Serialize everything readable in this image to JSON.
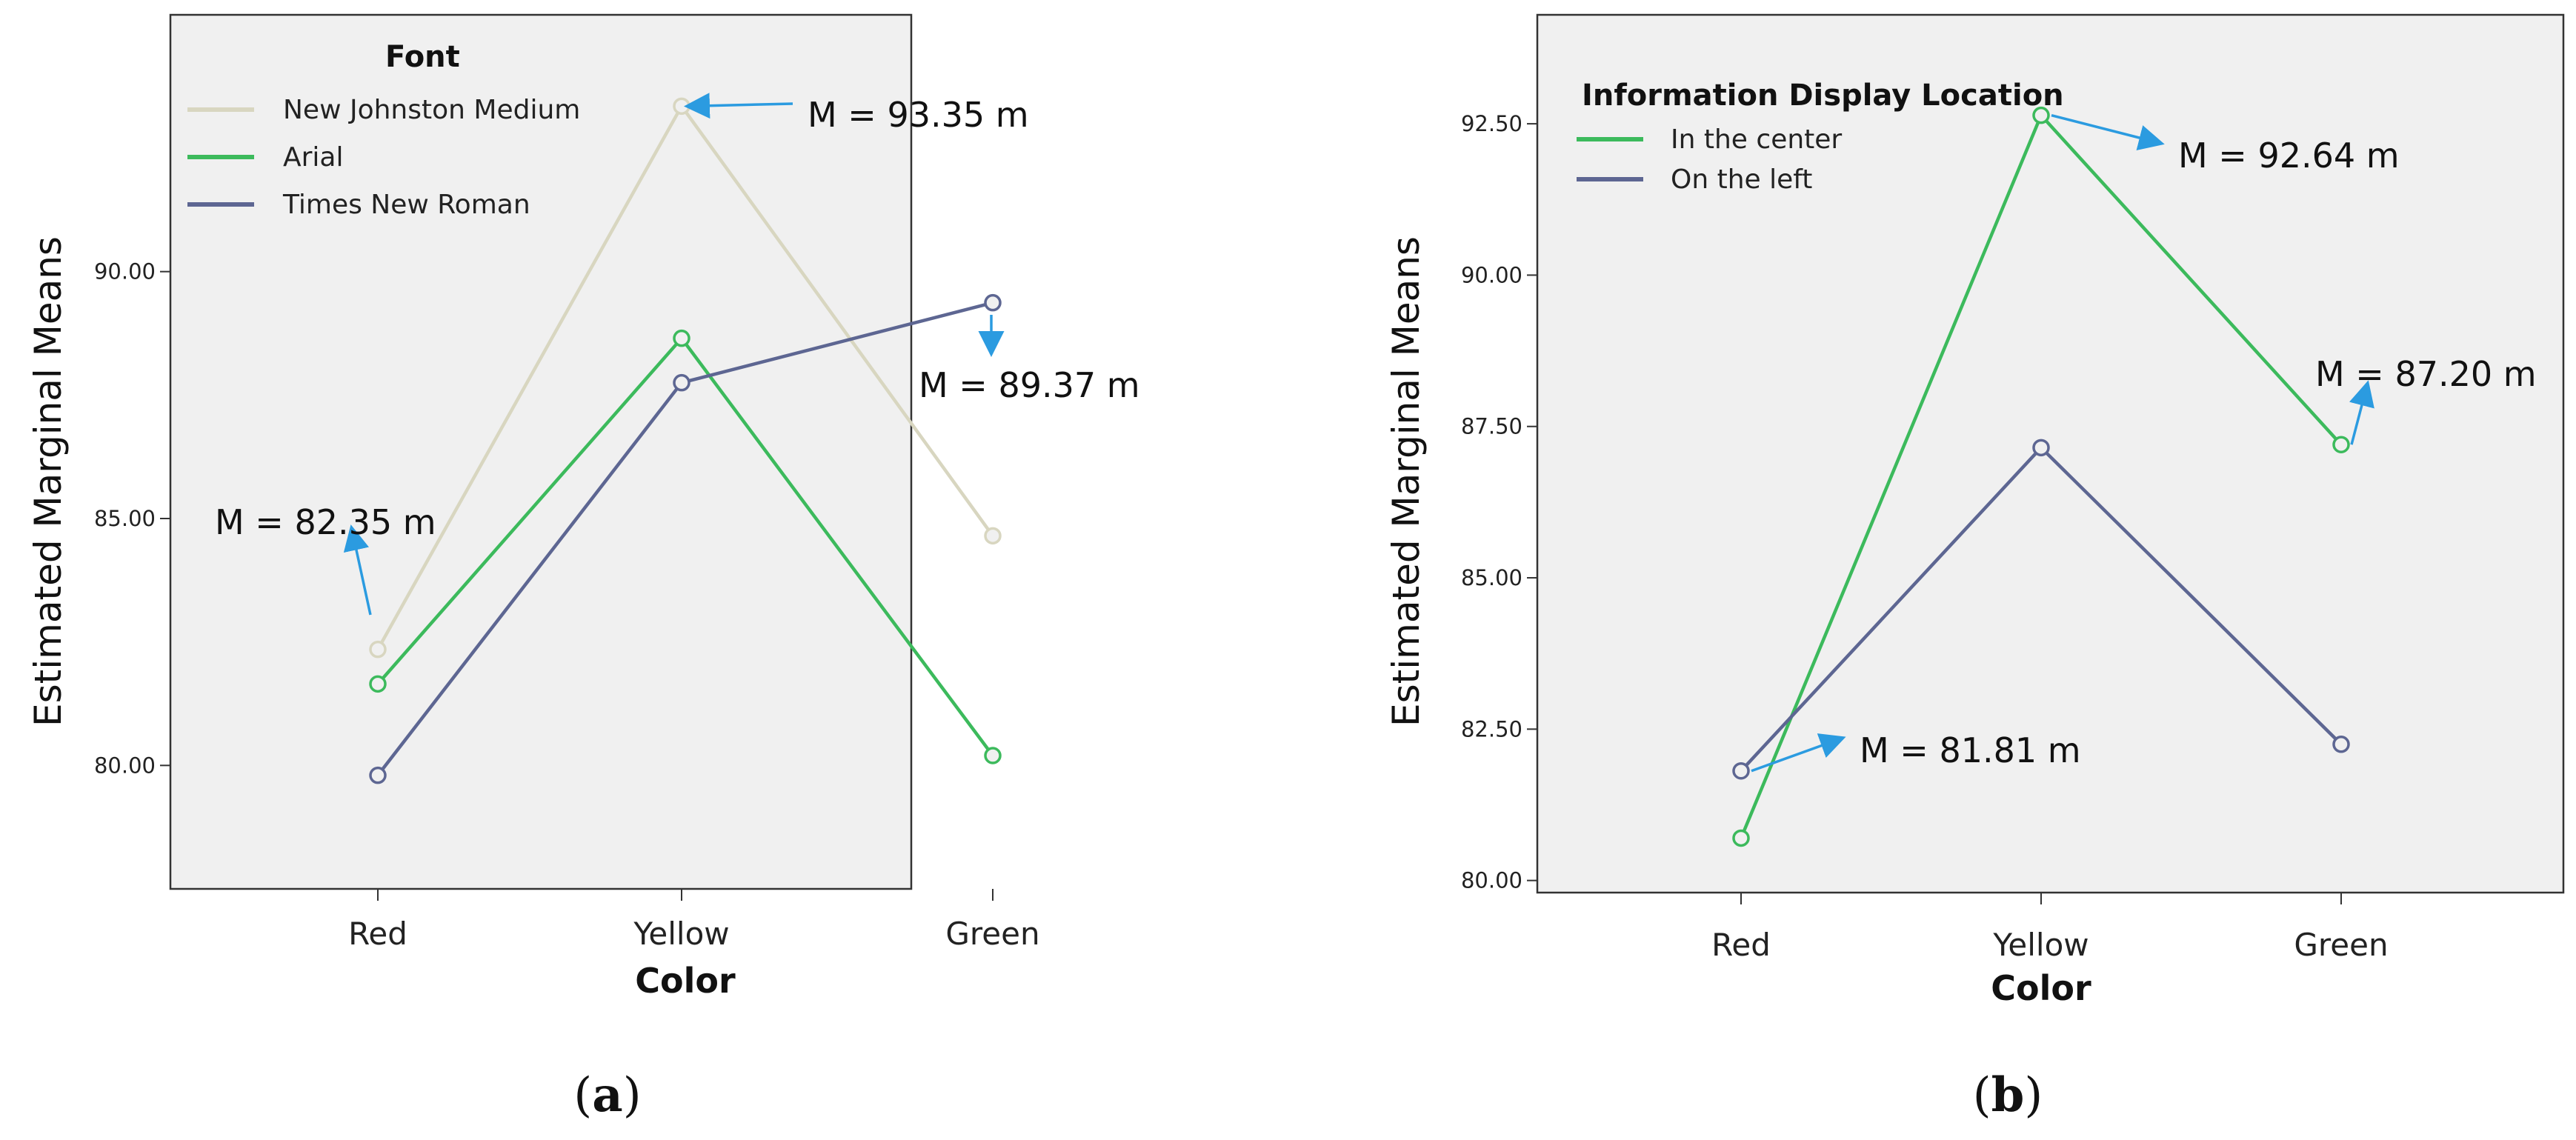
{
  "chart_data": [
    {
      "type": "line",
      "panel_label": "a",
      "categories": [
        "Red",
        "Yellow",
        "Green"
      ],
      "xlabel": "Color",
      "ylabel": "Estimated Marginal Means",
      "ylim": [
        77.5,
        95.2
      ],
      "yticks": [
        80,
        85,
        90
      ],
      "ytick_labels": [
        "80.00",
        "85.00",
        "90.00"
      ],
      "legend_title": "Font",
      "legend_position": "top-left",
      "series": [
        {
          "name": "New Johnston Medium",
          "color": "#d8d6c0",
          "values": [
            82.35,
            93.35,
            84.65
          ]
        },
        {
          "name": "Arial",
          "color": "#3cba5c",
          "values": [
            81.65,
            88.65,
            80.2
          ]
        },
        {
          "name": "Times New Roman",
          "color": "#5d6692",
          "values": [
            79.8,
            87.75,
            89.37
          ]
        }
      ],
      "annotations": [
        {
          "text": "M = 93.35 m",
          "series": 0,
          "category": 1
        },
        {
          "text": "M = 89.37 m",
          "series": 2,
          "category": 2
        },
        {
          "text": "M = 82.35 m",
          "series": 0,
          "category": 0
        }
      ]
    },
    {
      "type": "line",
      "panel_label": "b",
      "categories": [
        "Red",
        "Yellow",
        "Green"
      ],
      "xlabel": "Color",
      "ylabel": "Estimated Marginal Means",
      "ylim": [
        79.8,
        94.3
      ],
      "yticks": [
        80,
        82.5,
        85,
        87.5,
        90,
        92.5
      ],
      "ytick_labels": [
        "80.00",
        "82.50",
        "85.00",
        "87.50",
        "90.00",
        "92.50"
      ],
      "legend_title": "Information Display Location",
      "legend_position": "top-left",
      "series": [
        {
          "name": "In the center",
          "color": "#3cba5c",
          "values": [
            80.7,
            92.64,
            87.2
          ]
        },
        {
          "name": "On the left",
          "color": "#5d6692",
          "values": [
            81.81,
            87.15,
            82.25
          ]
        }
      ],
      "annotations": [
        {
          "text": "M = 92.64 m",
          "series": 0,
          "category": 1
        },
        {
          "text": "M = 87.20 m",
          "series": 0,
          "category": 2
        },
        {
          "text": "M = 81.81 m",
          "series": 1,
          "category": 0
        }
      ]
    }
  ]
}
